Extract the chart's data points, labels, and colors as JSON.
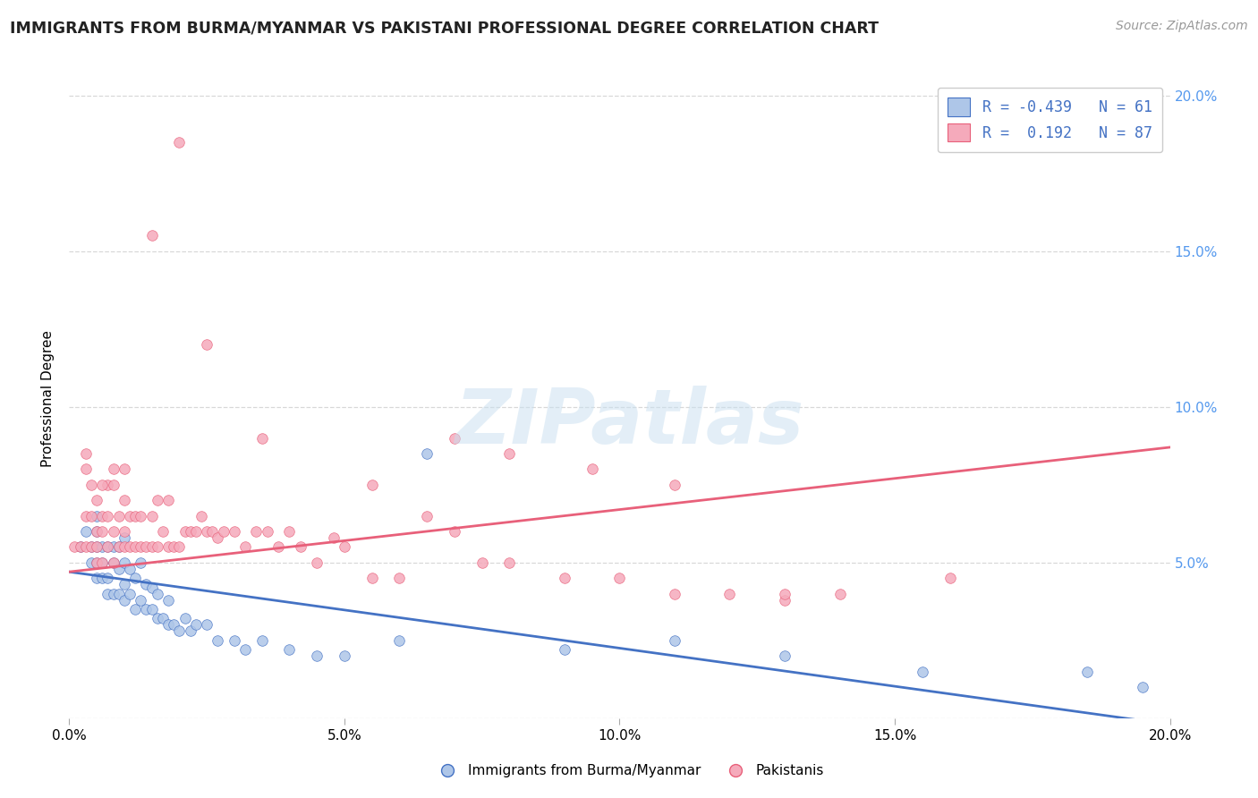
{
  "title": "IMMIGRANTS FROM BURMA/MYANMAR VS PAKISTANI PROFESSIONAL DEGREE CORRELATION CHART",
  "source": "Source: ZipAtlas.com",
  "ylabel": "Professional Degree",
  "x_label_bottom": "Immigrants from Burma/Myanmar",
  "legend_bottom_right": "Pakistanis",
  "xlim": [
    0.0,
    0.2
  ],
  "ylim": [
    0.0,
    0.205
  ],
  "xticks": [
    0.0,
    0.05,
    0.1,
    0.15,
    0.2
  ],
  "yticks": [
    0.0,
    0.05,
    0.1,
    0.15,
    0.2
  ],
  "xtick_labels": [
    "0.0%",
    "5.0%",
    "10.0%",
    "15.0%",
    "20.0%"
  ],
  "ytick_labels_right": [
    "",
    "5.0%",
    "10.0%",
    "15.0%",
    "20.0%"
  ],
  "blue_R": -0.439,
  "blue_N": 61,
  "pink_R": 0.192,
  "pink_N": 87,
  "blue_fill_color": "#aec6e8",
  "pink_fill_color": "#f5aabb",
  "blue_edge_color": "#4472c4",
  "pink_edge_color": "#e8607a",
  "blue_line_color": "#4472c4",
  "pink_line_color": "#e8607a",
  "legend_text_color": "#4472c4",
  "title_color": "#222222",
  "source_color": "#999999",
  "right_tick_color": "#5599ee",
  "background_color": "#ffffff",
  "grid_color": "#d8d8d8",
  "blue_scatter_x": [
    0.002,
    0.003,
    0.004,
    0.004,
    0.005,
    0.005,
    0.005,
    0.005,
    0.005,
    0.006,
    0.006,
    0.006,
    0.007,
    0.007,
    0.007,
    0.008,
    0.008,
    0.008,
    0.009,
    0.009,
    0.009,
    0.01,
    0.01,
    0.01,
    0.01,
    0.011,
    0.011,
    0.012,
    0.012,
    0.013,
    0.013,
    0.014,
    0.014,
    0.015,
    0.015,
    0.016,
    0.016,
    0.017,
    0.018,
    0.018,
    0.019,
    0.02,
    0.021,
    0.022,
    0.023,
    0.025,
    0.027,
    0.03,
    0.032,
    0.035,
    0.04,
    0.045,
    0.05,
    0.06,
    0.065,
    0.09,
    0.11,
    0.13,
    0.155,
    0.185,
    0.195
  ],
  "blue_scatter_y": [
    0.055,
    0.06,
    0.05,
    0.055,
    0.045,
    0.05,
    0.055,
    0.06,
    0.065,
    0.045,
    0.05,
    0.055,
    0.04,
    0.045,
    0.055,
    0.04,
    0.05,
    0.055,
    0.04,
    0.048,
    0.055,
    0.038,
    0.043,
    0.05,
    0.058,
    0.04,
    0.048,
    0.035,
    0.045,
    0.038,
    0.05,
    0.035,
    0.043,
    0.035,
    0.042,
    0.032,
    0.04,
    0.032,
    0.03,
    0.038,
    0.03,
    0.028,
    0.032,
    0.028,
    0.03,
    0.03,
    0.025,
    0.025,
    0.022,
    0.025,
    0.022,
    0.02,
    0.02,
    0.025,
    0.085,
    0.022,
    0.025,
    0.02,
    0.015,
    0.015,
    0.01
  ],
  "pink_scatter_x": [
    0.001,
    0.002,
    0.003,
    0.003,
    0.004,
    0.004,
    0.005,
    0.005,
    0.005,
    0.005,
    0.006,
    0.006,
    0.006,
    0.007,
    0.007,
    0.007,
    0.008,
    0.008,
    0.008,
    0.009,
    0.009,
    0.01,
    0.01,
    0.01,
    0.01,
    0.011,
    0.011,
    0.012,
    0.012,
    0.013,
    0.013,
    0.014,
    0.015,
    0.015,
    0.016,
    0.016,
    0.017,
    0.018,
    0.018,
    0.019,
    0.02,
    0.021,
    0.022,
    0.023,
    0.024,
    0.025,
    0.026,
    0.027,
    0.028,
    0.03,
    0.032,
    0.034,
    0.036,
    0.038,
    0.04,
    0.042,
    0.045,
    0.048,
    0.05,
    0.055,
    0.06,
    0.065,
    0.07,
    0.075,
    0.08,
    0.09,
    0.1,
    0.11,
    0.12,
    0.13,
    0.14,
    0.015,
    0.02,
    0.025,
    0.035,
    0.055,
    0.07,
    0.08,
    0.095,
    0.11,
    0.13,
    0.16,
    0.003,
    0.003,
    0.004,
    0.006,
    0.008
  ],
  "pink_scatter_y": [
    0.055,
    0.055,
    0.055,
    0.065,
    0.055,
    0.065,
    0.05,
    0.055,
    0.06,
    0.07,
    0.05,
    0.06,
    0.065,
    0.055,
    0.065,
    0.075,
    0.05,
    0.06,
    0.075,
    0.055,
    0.065,
    0.055,
    0.06,
    0.07,
    0.08,
    0.055,
    0.065,
    0.055,
    0.065,
    0.055,
    0.065,
    0.055,
    0.055,
    0.065,
    0.055,
    0.07,
    0.06,
    0.055,
    0.07,
    0.055,
    0.055,
    0.06,
    0.06,
    0.06,
    0.065,
    0.06,
    0.06,
    0.058,
    0.06,
    0.06,
    0.055,
    0.06,
    0.06,
    0.055,
    0.06,
    0.055,
    0.05,
    0.058,
    0.055,
    0.045,
    0.045,
    0.065,
    0.06,
    0.05,
    0.05,
    0.045,
    0.045,
    0.04,
    0.04,
    0.038,
    0.04,
    0.155,
    0.185,
    0.12,
    0.09,
    0.075,
    0.09,
    0.085,
    0.08,
    0.075,
    0.04,
    0.045,
    0.085,
    0.08,
    0.075,
    0.075,
    0.08
  ]
}
